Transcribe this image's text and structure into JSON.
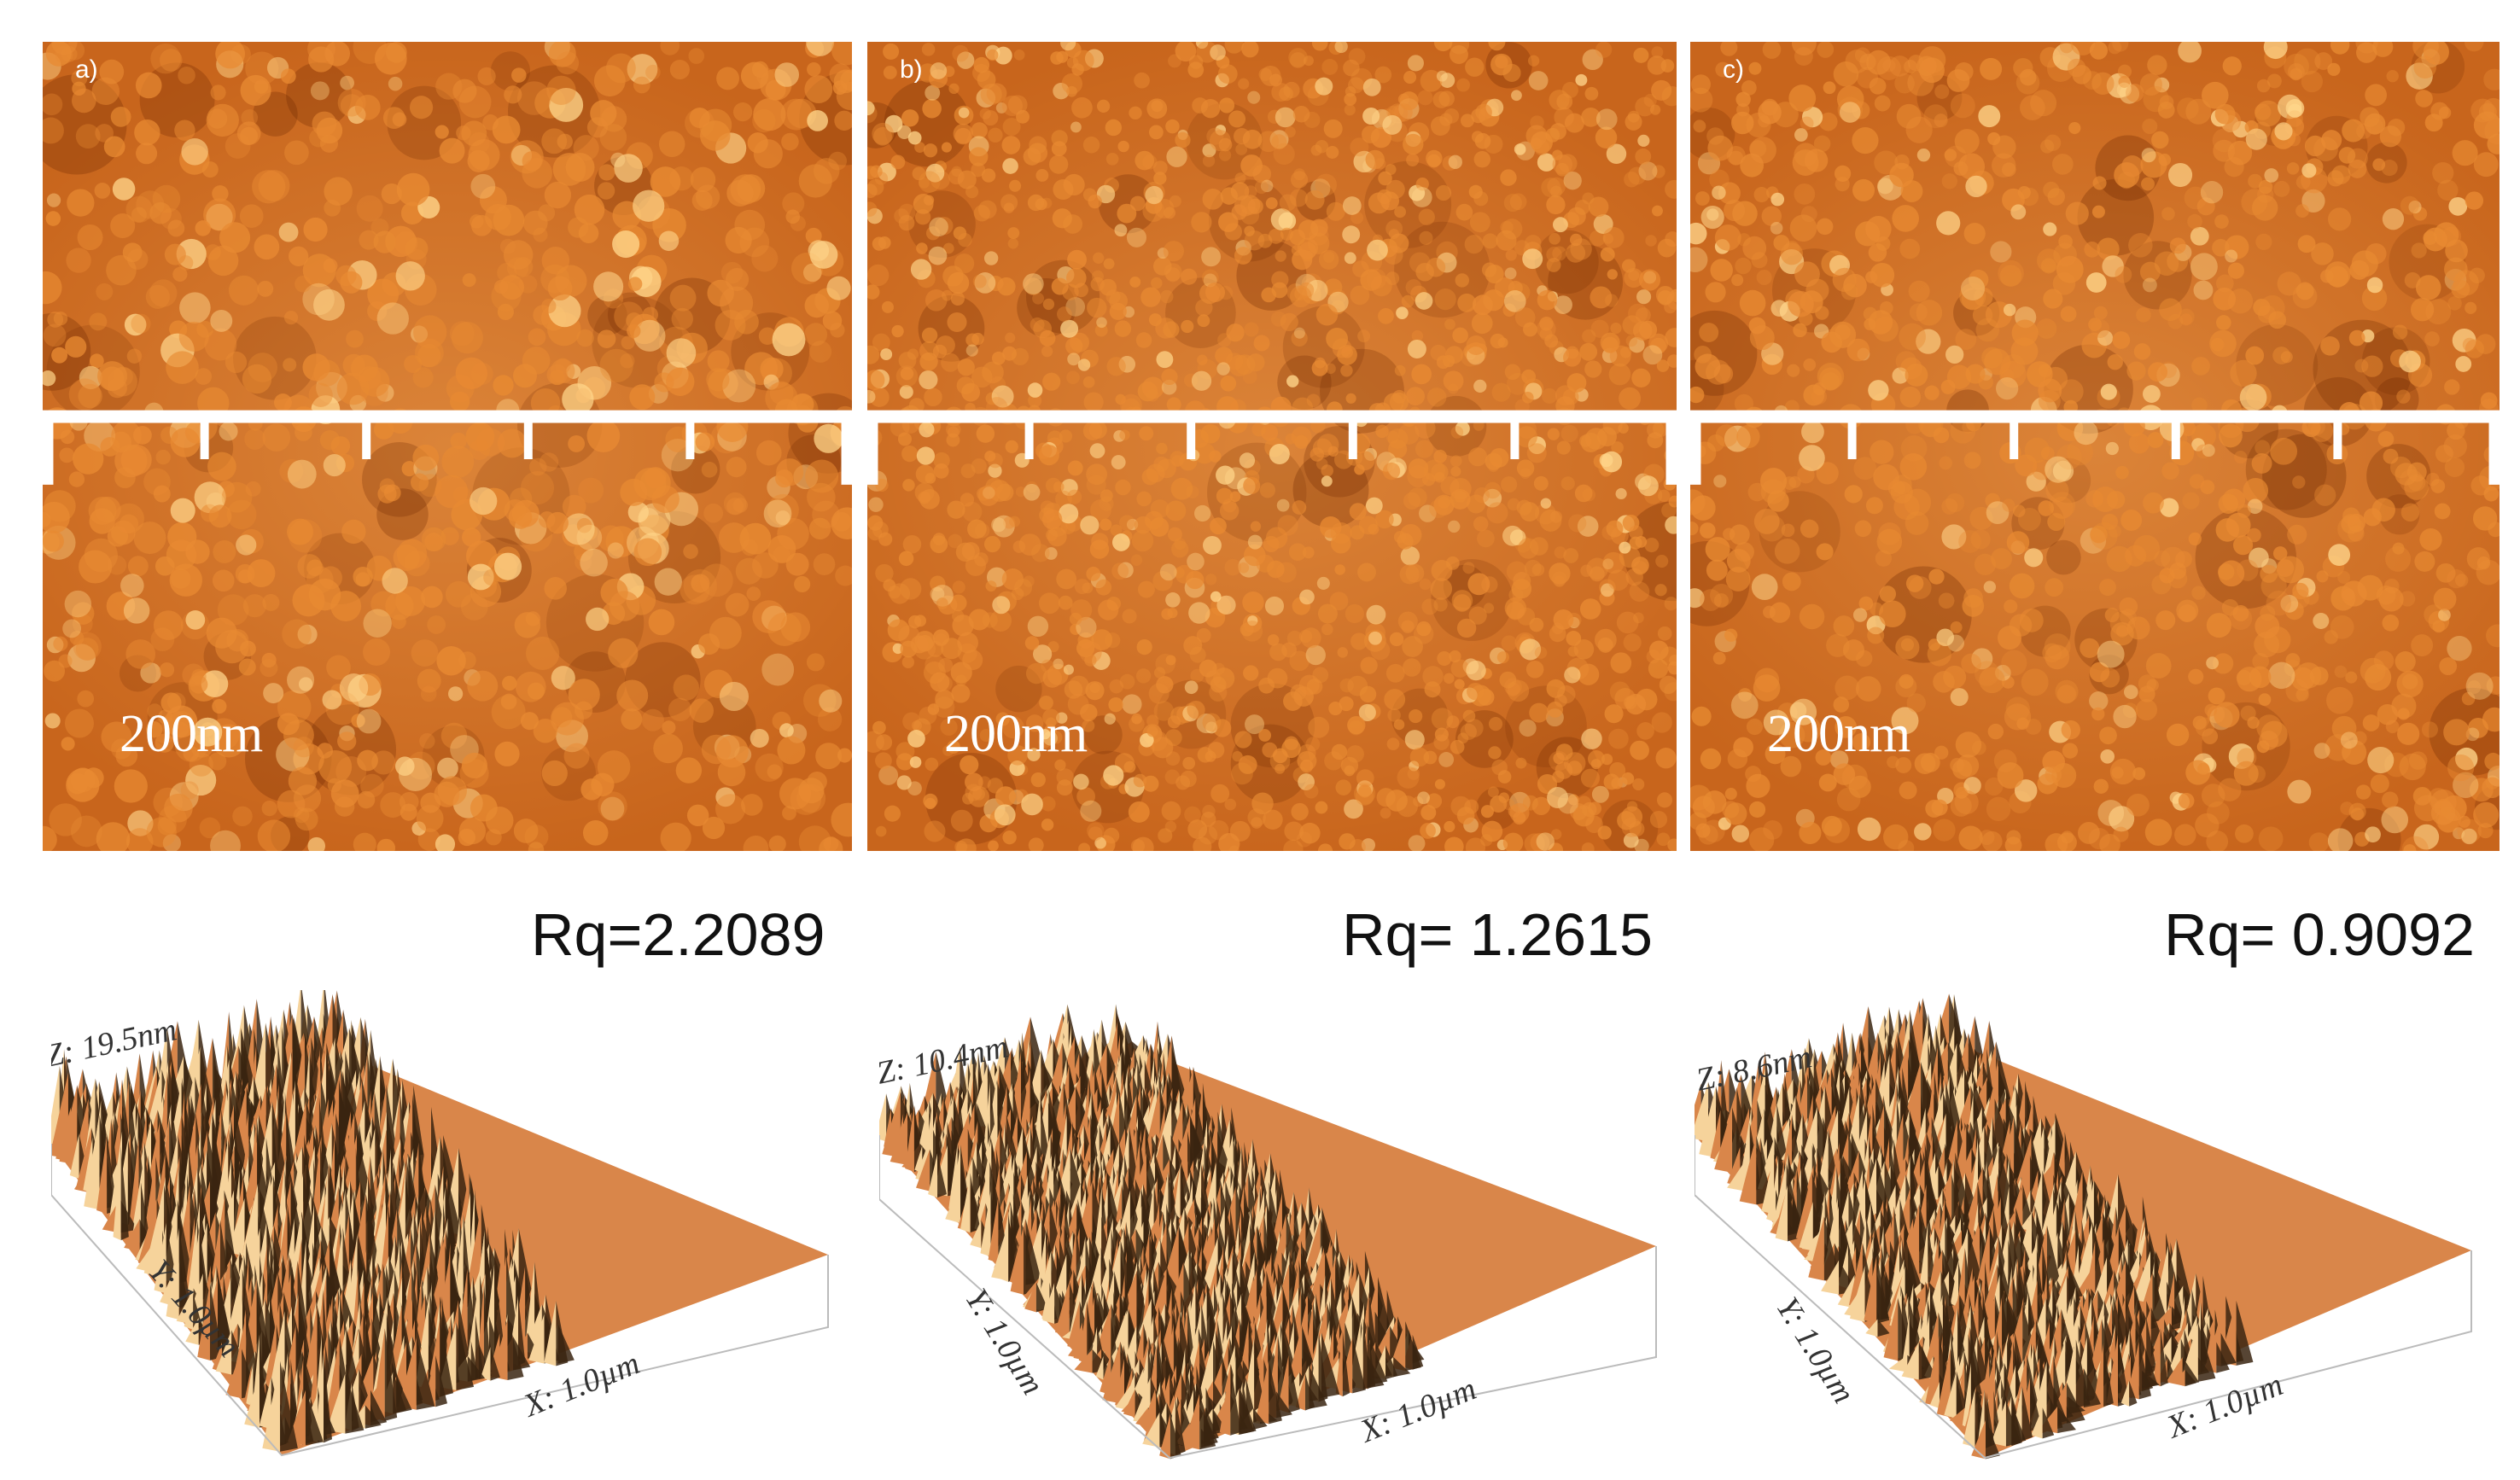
{
  "panels": [
    {
      "id": "a",
      "letter": "a)",
      "scale_label": "200nm",
      "rq": "Rq=2.2089",
      "z_label": "Z: 19.5nm",
      "y_label": "Y: 1.0µm",
      "x_label": "X: 1.0µm"
    },
    {
      "id": "b",
      "letter": "b)",
      "scale_label": "200nm",
      "rq": "Rq= 1.2615",
      "z_label": "Z: 10.4nm",
      "y_label": "Y: 1.0µm",
      "x_label": "X: 1.0µm"
    },
    {
      "id": "c",
      "letter": "c)",
      "scale_label": "200nm",
      "rq": "Rq= 0.9092",
      "z_label": "Z: 8.6nm",
      "y_label": "Y: 1.0µm",
      "x_label": "X: 1.0µm"
    }
  ],
  "colors": {
    "afm_base": "#c8651c",
    "afm_grain_light": "#ffd58a",
    "afm_grain_mid": "#e88a32",
    "afm_shadow": "#6b2500",
    "surface_peak_light": "#f6d39b",
    "surface_dark": "#3a2410",
    "surface_orange": "#d9864a"
  }
}
